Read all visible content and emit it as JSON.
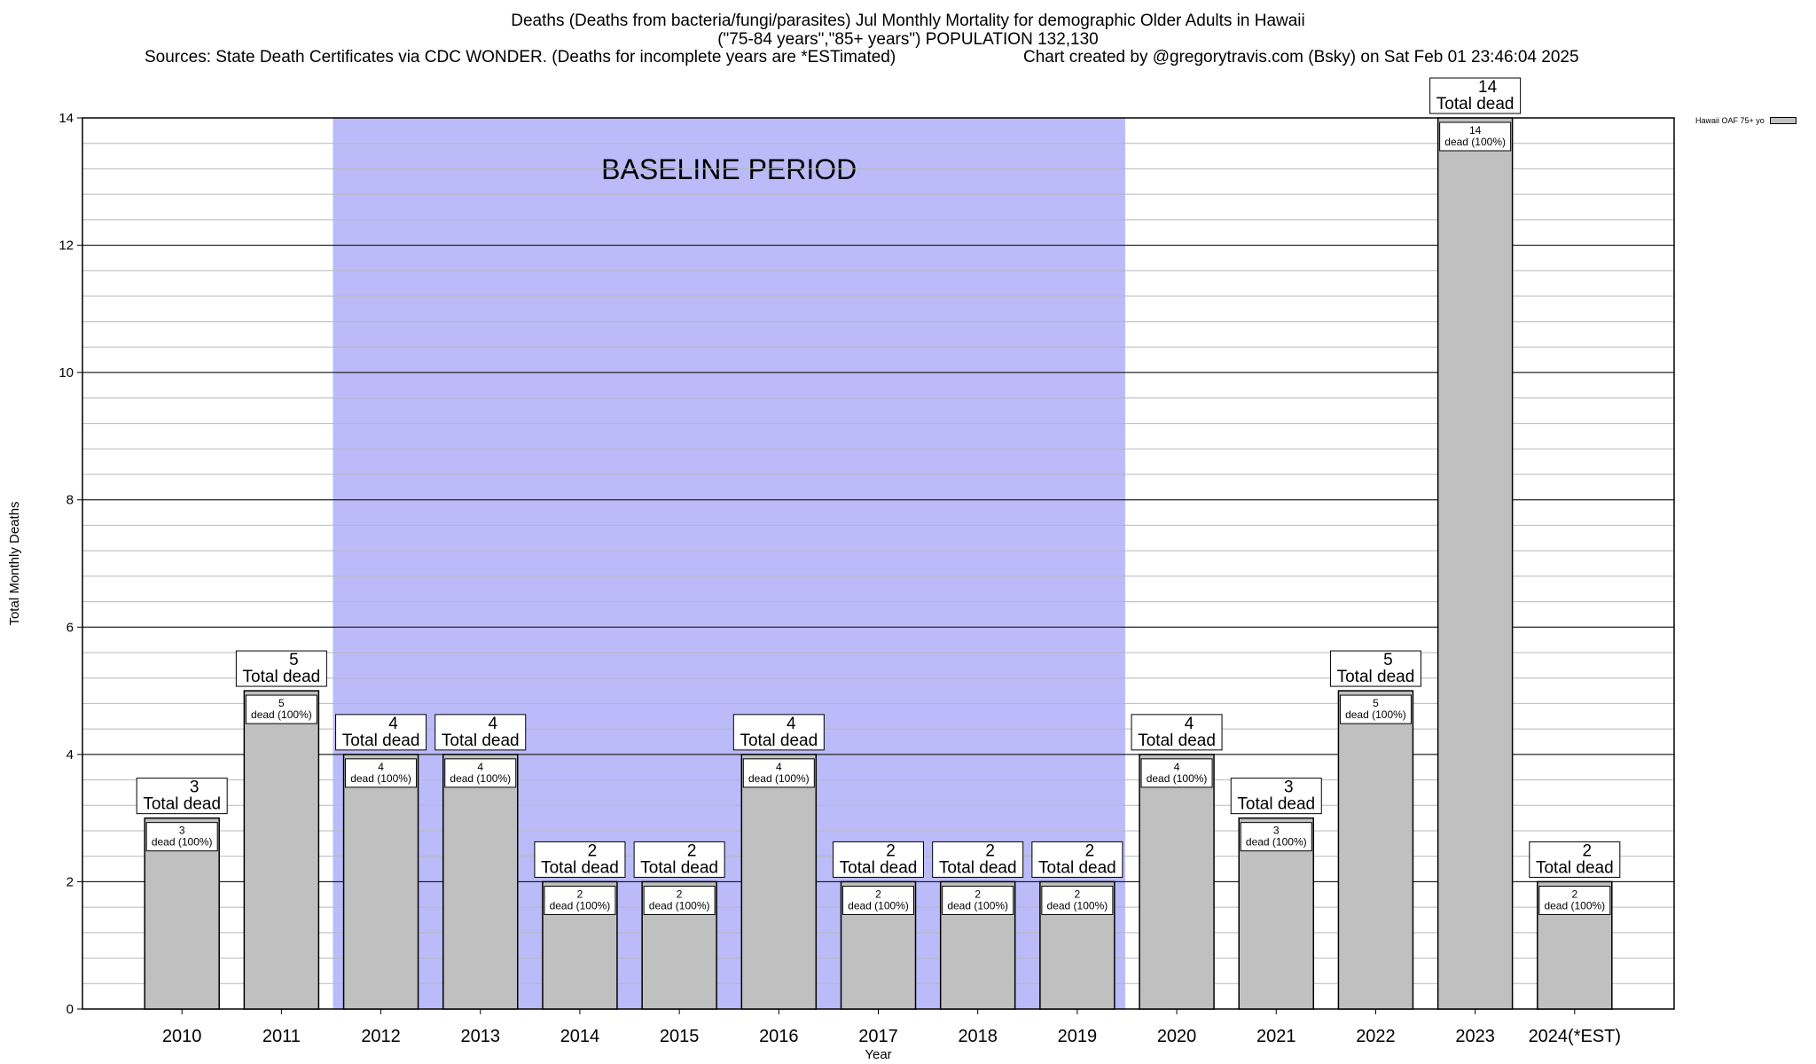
{
  "header": {
    "title_line1": "Deaths (Deaths from bacteria/fungi/parasites) Jul Monthly Mortality for demographic Older Adults in Hawaii",
    "title_line2": "(\"75-84 years\",\"85+ years\") POPULATION 132,130",
    "sources": "Sources: State Death Certificates via CDC WONDER. (Deaths for incomplete years are *ESTimated)",
    "credit": "Chart created by @gregorytravis.com (Bsky) on Sat Feb 01 23:46:04 2025"
  },
  "chart_data": {
    "type": "bar",
    "categories": [
      "2010",
      "2011",
      "2012",
      "2013",
      "2014",
      "2015",
      "2016",
      "2017",
      "2018",
      "2019",
      "2020",
      "2021",
      "2022",
      "2023",
      "2024(*EST)"
    ],
    "series": [
      {
        "name": "Hawaii OAF 75+ yo",
        "values": [
          3,
          5,
          4,
          4,
          2,
          2,
          4,
          2,
          2,
          2,
          4,
          3,
          5,
          14,
          2
        ],
        "color": "#c0c0c0"
      }
    ],
    "bar_top_label": "Total dead",
    "bar_inner_label": "dead (100%)",
    "xlabel": "Year",
    "ylabel": "Total Monthly Deaths",
    "ylim": [
      0,
      14
    ],
    "yticks": [
      0,
      2,
      4,
      6,
      8,
      10,
      12,
      14
    ],
    "minor_grid_step": 0.4,
    "grid": true,
    "legend_position": "top-right",
    "baseline": {
      "label": "BASELINE PERIOD",
      "from": "2012",
      "to": "2019",
      "color": "#bbbbfa"
    }
  }
}
